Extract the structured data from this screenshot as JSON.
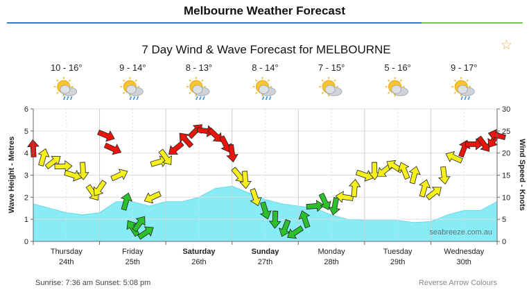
{
  "page": {
    "title": "Melbourne Weather Forecast"
  },
  "icons": {
    "favorite": "star-icon"
  },
  "footer": {
    "sunrise_sunset": "Sunrise: 7:36 am  Sunset: 5:08 pm",
    "reverse_colours": "Reverse Arrow Colours"
  },
  "chart_data": {
    "type": "area",
    "title": "7 Day Wind & Wave Forecast for MELBOURNE",
    "ylabel_left": "Wave Height - Metres",
    "ylabel_right": "Wind Speed - Knots",
    "ylim_left": [
      0,
      6
    ],
    "ylim_right": [
      0,
      30
    ],
    "yticks_left": [
      "0",
      "1",
      "2",
      "3",
      "4",
      "5",
      "6"
    ],
    "yticks_right": [
      "0",
      "5",
      "10",
      "15",
      "20",
      "25",
      "30"
    ],
    "watermark": "seabreeze.com.au",
    "colors": {
      "wave": "#88ecf6",
      "wind_low": "#2cc12c",
      "wind_mid": "#f6f01c",
      "wind_high": "#e8150c"
    },
    "days": [
      {
        "name": "Thursday",
        "date": "24th",
        "bold": false,
        "temp": "10 - 16°",
        "icon": "partly-cloudy-rain-icon"
      },
      {
        "name": "Friday",
        "date": "25th",
        "bold": false,
        "temp": "9 - 14°",
        "icon": "partly-cloudy-rain-icon"
      },
      {
        "name": "Saturday",
        "date": "26th",
        "bold": true,
        "temp": "8 - 13°",
        "icon": "partly-cloudy-rain-icon"
      },
      {
        "name": "Sunday",
        "date": "27th",
        "bold": true,
        "temp": "8 - 14°",
        "icon": "partly-cloudy-rain-icon"
      },
      {
        "name": "Monday",
        "date": "28th",
        "bold": false,
        "temp": "7 - 15°",
        "icon": "partly-cloudy-icon"
      },
      {
        "name": "Tuesday",
        "date": "29th",
        "bold": false,
        "temp": "5 - 16°",
        "icon": "partly-cloudy-icon"
      },
      {
        "name": "Wednesday",
        "date": "30th",
        "bold": false,
        "temp": "9 - 17°",
        "icon": "partly-cloudy-rain-icon"
      }
    ],
    "x_range_days": [
      0,
      7
    ],
    "wave_height": {
      "x": [
        0,
        0.25,
        0.5,
        0.75,
        1,
        1.25,
        1.5,
        1.75,
        2,
        2.25,
        2.5,
        2.75,
        3,
        3.25,
        3.5,
        3.75,
        4,
        4.25,
        4.5,
        4.75,
        5,
        5.25,
        5.5,
        5.75,
        6,
        6.25,
        6.5,
        6.75,
        7
      ],
      "values": [
        1.7,
        1.5,
        1.3,
        1.2,
        1.3,
        1.8,
        1.8,
        1.6,
        1.8,
        1.8,
        2.0,
        2.4,
        2.5,
        2.2,
        1.9,
        1.7,
        1.6,
        1.5,
        1.2,
        1.0,
        0.95,
        0.95,
        0.95,
        0.85,
        0.9,
        1.2,
        1.4,
        1.4,
        1.8
      ]
    },
    "wind_speed": {
      "x": [
        0,
        0.15,
        0.3,
        0.45,
        0.6,
        0.75,
        0.9,
        1.0,
        1.1,
        1.2,
        1.3,
        1.4,
        1.5,
        1.6,
        1.7,
        1.8,
        1.9,
        2.0,
        2.15,
        2.3,
        2.45,
        2.6,
        2.75,
        2.9,
        3.0,
        3.1,
        3.2,
        3.35,
        3.5,
        3.65,
        3.8,
        3.95,
        4.1,
        4.25,
        4.4,
        4.55,
        4.7,
        4.85,
        5.0,
        5.15,
        5.3,
        5.45,
        5.6,
        5.75,
        5.9,
        6.05,
        6.2,
        6.35,
        6.5,
        6.65,
        6.8,
        6.95,
        7.0
      ],
      "knots": [
        21,
        19,
        18,
        17,
        15,
        16,
        11,
        12,
        24,
        21,
        15,
        9,
        3,
        4,
        2,
        10,
        18,
        19,
        21,
        23,
        25,
        25,
        24,
        22,
        20,
        15,
        14,
        10,
        7,
        5,
        3,
        2,
        5,
        8,
        9,
        8,
        10,
        12,
        15,
        16,
        16,
        17,
        16,
        15,
        12,
        11,
        15,
        19,
        21,
        22,
        22,
        23,
        24
      ]
    }
  }
}
